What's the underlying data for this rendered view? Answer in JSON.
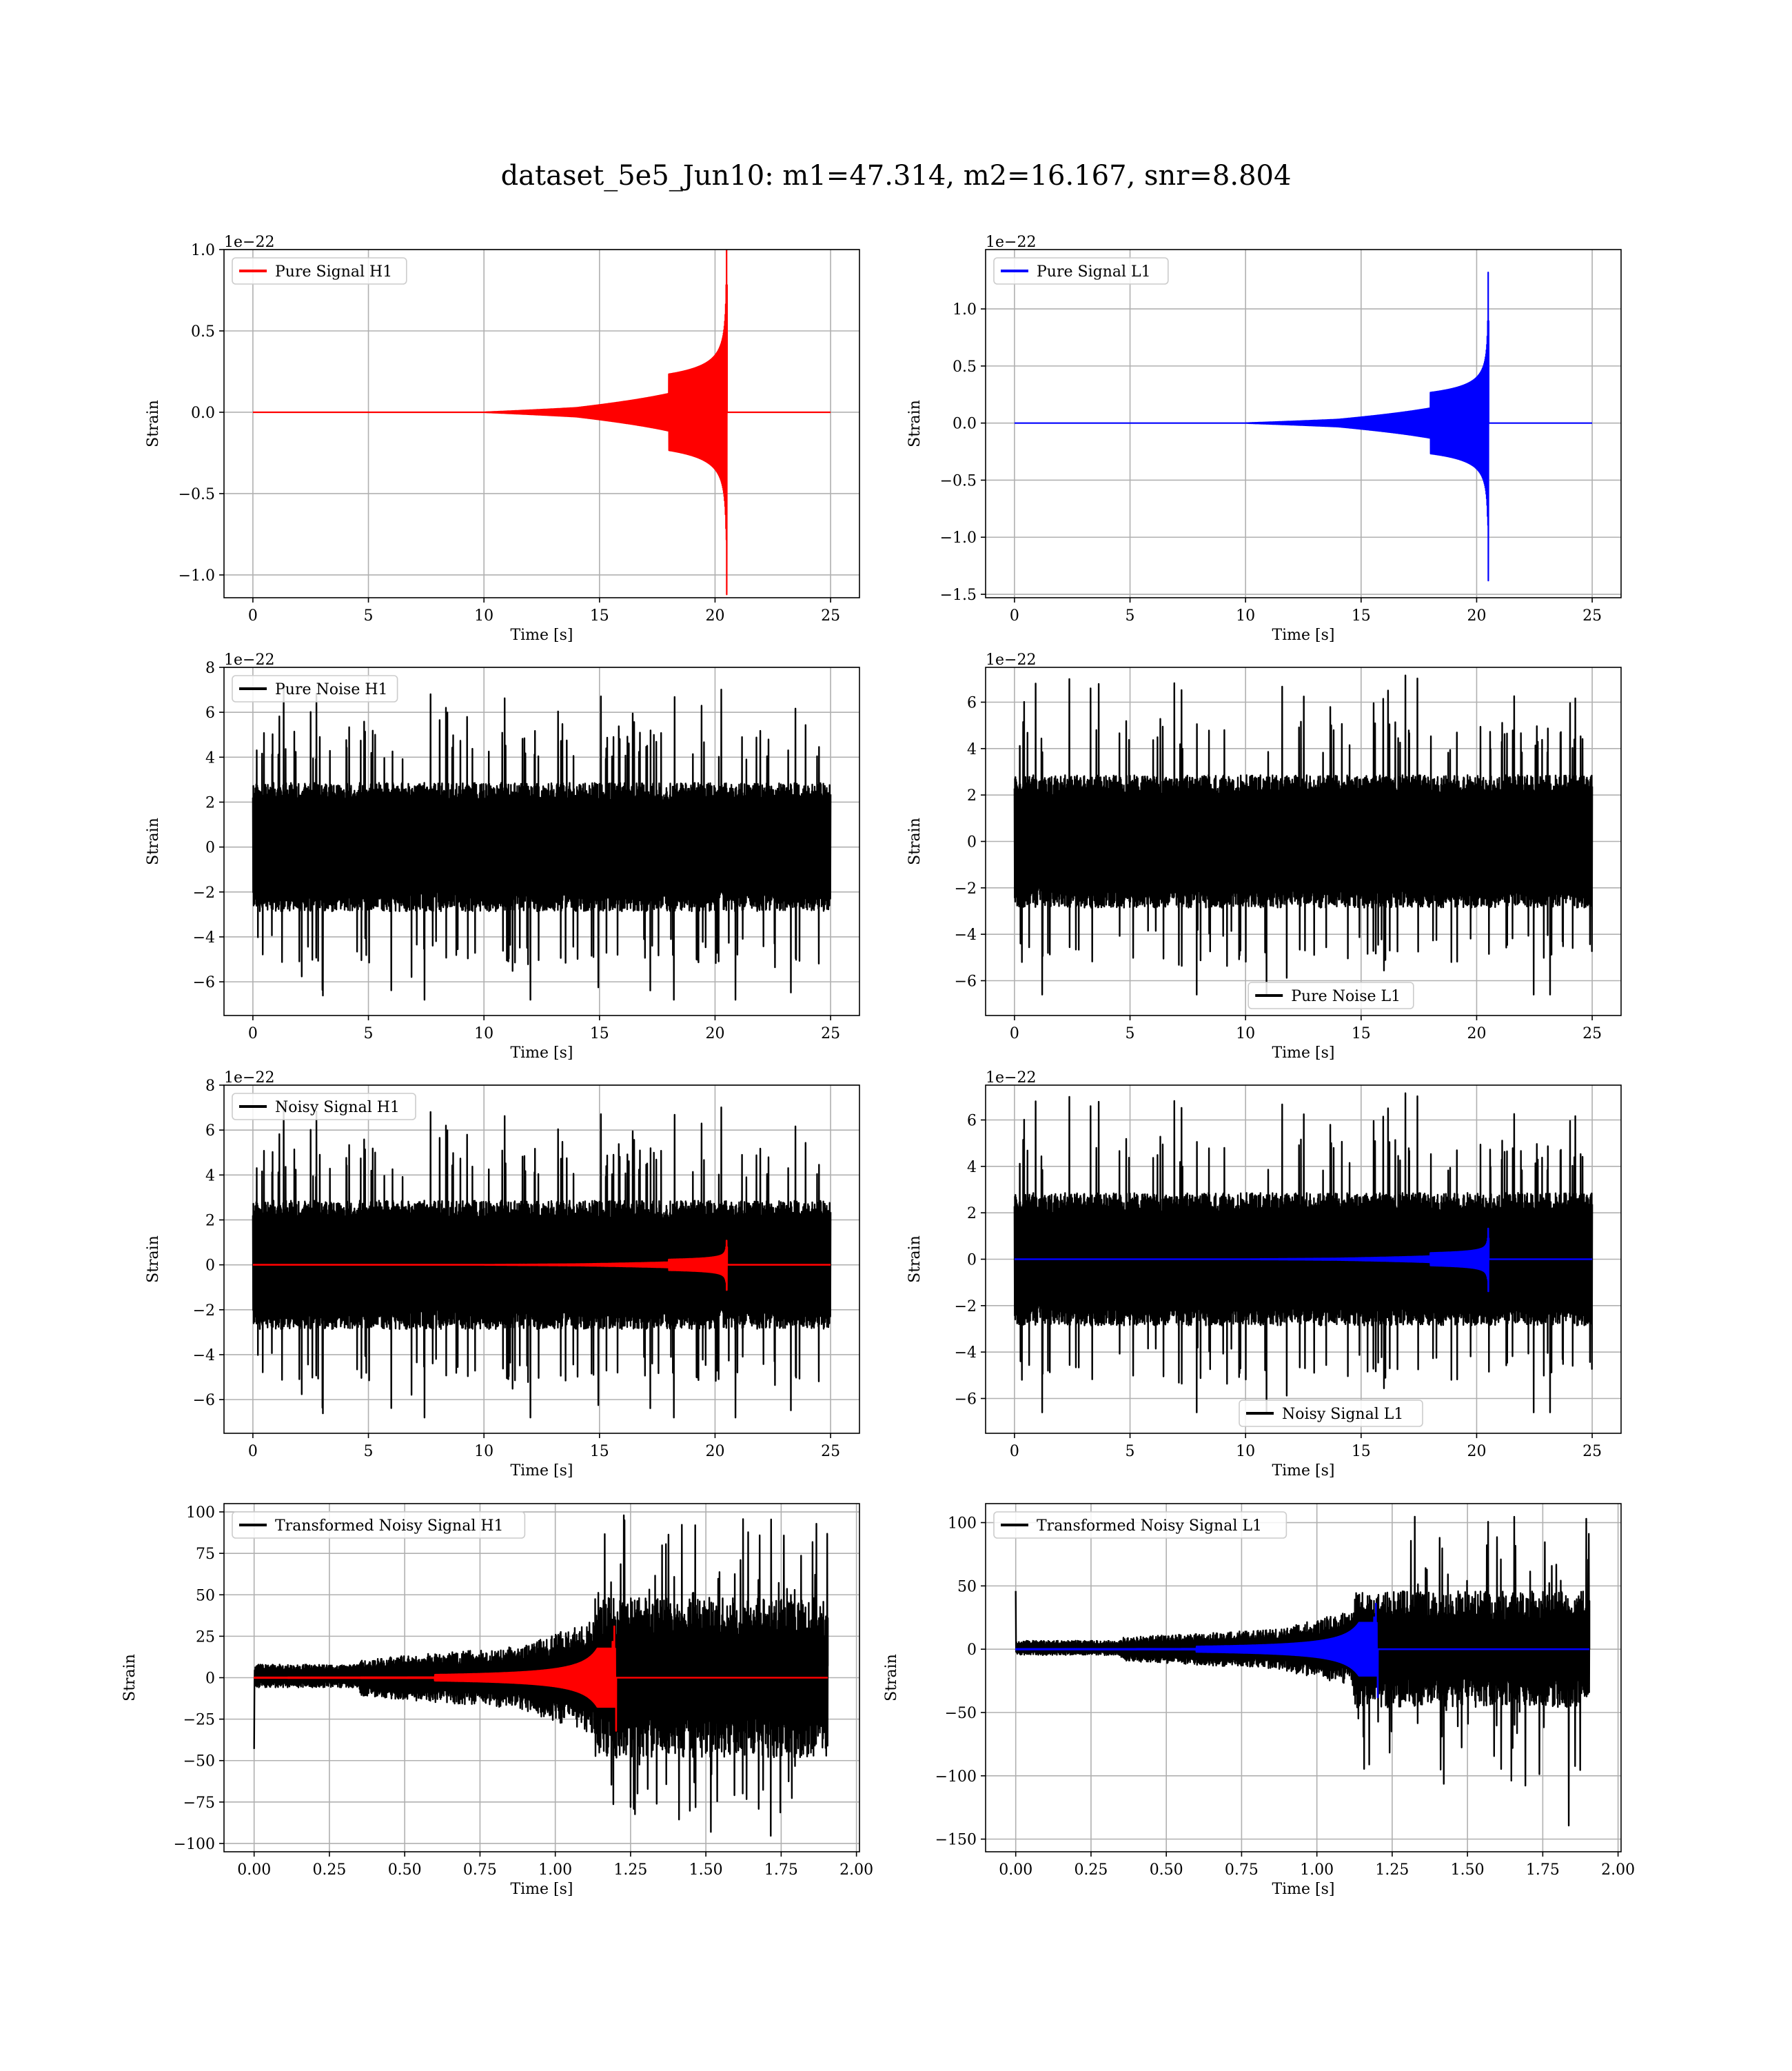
{
  "figure": {
    "suptitle": "dataset_5e5_Jun10: m1=47.314, m2=16.167, snr=8.804"
  },
  "colors": {
    "h1_signal": "#ff0000",
    "l1_signal": "#0000ff",
    "noise": "#000000",
    "grid": "#b0b0b0"
  },
  "chart_data": [
    {
      "id": "pure-signal-h1",
      "type": "line",
      "grid": true,
      "legend_placement": "upper left",
      "xlabel": "Time [s]",
      "ylabel": "Strain",
      "offset_text": "1e−22",
      "xlim": [
        -1.25,
        26.25
      ],
      "ylim": [
        -1.14,
        1.0
      ],
      "xticks": [
        0,
        5,
        10,
        15,
        20,
        25
      ],
      "xtick_labels": [
        "0",
        "5",
        "10",
        "15",
        "20",
        "25"
      ],
      "yticks": [
        -1.0,
        -0.5,
        0.0,
        0.5,
        1.0
      ],
      "ytick_labels": [
        "−1.0",
        "−0.5",
        "0.0",
        "0.5",
        "1.0"
      ],
      "series": [
        {
          "name": "Pure Signal H1",
          "kind": "chirp",
          "color": "#ff0000",
          "t_start": 0,
          "t_end": 25,
          "t_merger": 20.5,
          "peak_pos": 1.08,
          "peak_neg": -1.12,
          "env_at_20": 0.35,
          "width": 2.2
        }
      ]
    },
    {
      "id": "pure-signal-l1",
      "type": "line",
      "grid": true,
      "legend_placement": "upper left",
      "xlabel": "Time [s]",
      "ylabel": "Strain",
      "offset_text": "1e−22",
      "xlim": [
        -1.25,
        26.25
      ],
      "ylim": [
        -1.53,
        1.52
      ],
      "xticks": [
        0,
        5,
        10,
        15,
        20,
        25
      ],
      "xtick_labels": [
        "0",
        "5",
        "10",
        "15",
        "20",
        "25"
      ],
      "yticks": [
        -1.5,
        -1.0,
        -0.5,
        0.0,
        0.5,
        1.0
      ],
      "ytick_labels": [
        "−1.5",
        "−1.0",
        "−0.5",
        "0.0",
        "0.5",
        "1.0"
      ],
      "series": [
        {
          "name": "Pure Signal L1",
          "kind": "chirp",
          "color": "#0000ff",
          "t_start": 0,
          "t_end": 25,
          "t_merger": 20.5,
          "peak_pos": 1.32,
          "peak_neg": -1.38,
          "env_at_20": 0.4,
          "width": 2.2
        }
      ]
    },
    {
      "id": "pure-noise-h1",
      "type": "line",
      "grid": true,
      "legend_placement": "upper left",
      "xlabel": "Time [s]",
      "ylabel": "Strain",
      "offset_text": "1e−22",
      "xlim": [
        -1.25,
        26.25
      ],
      "ylim": [
        -7.5,
        8.0
      ],
      "xticks": [
        0,
        5,
        10,
        15,
        20,
        25
      ],
      "xtick_labels": [
        "0",
        "5",
        "10",
        "15",
        "20",
        "25"
      ],
      "yticks": [
        -6,
        -4,
        -2,
        0,
        2,
        4,
        6,
        8
      ],
      "ytick_labels": [
        "−6",
        "−4",
        "−2",
        "0",
        "2",
        "4",
        "6",
        "8"
      ],
      "series": [
        {
          "name": "Pure Noise H1",
          "kind": "noise",
          "color": "#000000",
          "t_start": 0,
          "t_end": 25,
          "core": 2.6,
          "spike_max": 7.4,
          "spike_min": -6.8,
          "seed": 11
        }
      ]
    },
    {
      "id": "pure-noise-l1",
      "type": "line",
      "grid": true,
      "legend_placement": "lower center",
      "xlabel": "Time [s]",
      "ylabel": "Strain",
      "offset_text": "1e−22",
      "xlim": [
        -1.25,
        26.25
      ],
      "ylim": [
        -7.5,
        7.5
      ],
      "xticks": [
        0,
        5,
        10,
        15,
        20,
        25
      ],
      "xtick_labels": [
        "0",
        "5",
        "10",
        "15",
        "20",
        "25"
      ],
      "yticks": [
        -6,
        -4,
        -2,
        0,
        2,
        4,
        6
      ],
      "ytick_labels": [
        "−6",
        "−4",
        "−2",
        "0",
        "2",
        "4",
        "6"
      ],
      "series": [
        {
          "name": "Pure Noise L1",
          "kind": "noise",
          "color": "#000000",
          "t_start": 0,
          "t_end": 25,
          "core": 2.6,
          "spike_max": 7.2,
          "spike_min": -6.6,
          "seed": 23
        }
      ]
    },
    {
      "id": "noisy-signal-h1",
      "type": "line",
      "grid": true,
      "legend_placement": "upper left",
      "xlabel": "Time [s]",
      "ylabel": "Strain",
      "offset_text": "1e−22",
      "xlim": [
        -1.25,
        26.25
      ],
      "ylim": [
        -7.5,
        8.0
      ],
      "xticks": [
        0,
        5,
        10,
        15,
        20,
        25
      ],
      "xtick_labels": [
        "0",
        "5",
        "10",
        "15",
        "20",
        "25"
      ],
      "yticks": [
        -6,
        -4,
        -2,
        0,
        2,
        4,
        6,
        8
      ],
      "ytick_labels": [
        "−6",
        "−4",
        "−2",
        "0",
        "2",
        "4",
        "6",
        "8"
      ],
      "series": [
        {
          "name": "Noisy Signal H1",
          "kind": "noise",
          "color": "#000000",
          "t_start": 0,
          "t_end": 25,
          "core": 2.6,
          "spike_max": 7.4,
          "spike_min": -6.8,
          "seed": 11
        },
        {
          "kind": "chirp",
          "color": "#ff0000",
          "t_start": 0,
          "t_end": 25,
          "t_merger": 20.5,
          "peak_pos": 1.08,
          "peak_neg": -1.12,
          "env_at_20": 0.35,
          "width": 2.6
        }
      ]
    },
    {
      "id": "noisy-signal-l1",
      "type": "line",
      "grid": true,
      "legend_placement": "lower center",
      "xlabel": "Time [s]",
      "ylabel": "Strain",
      "offset_text": "1e−22",
      "xlim": [
        -1.25,
        26.25
      ],
      "ylim": [
        -7.5,
        7.5
      ],
      "xticks": [
        0,
        5,
        10,
        15,
        20,
        25
      ],
      "xtick_labels": [
        "0",
        "5",
        "10",
        "15",
        "20",
        "25"
      ],
      "yticks": [
        -6,
        -4,
        -2,
        0,
        2,
        4,
        6
      ],
      "ytick_labels": [
        "−6",
        "−4",
        "−2",
        "0",
        "2",
        "4",
        "6"
      ],
      "series": [
        {
          "name": "Noisy Signal L1",
          "kind": "noise",
          "color": "#000000",
          "t_start": 0,
          "t_end": 25,
          "core": 2.6,
          "spike_max": 7.2,
          "spike_min": -6.6,
          "seed": 23
        },
        {
          "kind": "chirp",
          "color": "#0000ff",
          "t_start": 0,
          "t_end": 25,
          "t_merger": 20.5,
          "peak_pos": 1.32,
          "peak_neg": -1.38,
          "env_at_20": 0.4,
          "width": 2.6
        }
      ]
    },
    {
      "id": "transformed-noisy-signal-h1",
      "type": "line",
      "grid": true,
      "legend_placement": "upper left",
      "xlabel": "Time [s]",
      "ylabel": "Strain",
      "offset_text": "",
      "xlim": [
        -0.1,
        2.01
      ],
      "ylim": [
        -105,
        105
      ],
      "xticks": [
        0,
        0.25,
        0.5,
        0.75,
        1.0,
        1.25,
        1.5,
        1.75,
        2.0
      ],
      "xtick_labels": [
        "0.00",
        "0.25",
        "0.50",
        "0.75",
        "1.00",
        "1.25",
        "1.50",
        "1.75",
        "2.00"
      ],
      "yticks": [
        -100,
        -75,
        -50,
        -25,
        0,
        25,
        50,
        75,
        100
      ],
      "ytick_labels": [
        "−100",
        "−75",
        "−50",
        "−25",
        "0",
        "25",
        "50",
        "75",
        "100"
      ],
      "series": [
        {
          "name": "Transformed Noisy Signal H1",
          "kind": "tnoise",
          "color": "#000000",
          "t_start": 0,
          "t_end": 1.905,
          "t_ramp": 1.13,
          "pre_core": 6,
          "post_core": 42,
          "spike_max": 98,
          "spike_min": -97,
          "dip_start": -43,
          "tail_end": 7,
          "seed": 37
        },
        {
          "kind": "tchirp",
          "color": "#ff0000",
          "t_start": 0,
          "t_end": 1.905,
          "t_merger": 1.2,
          "peak_pos": 31,
          "peak_neg": -32,
          "width": 2.6
        }
      ]
    },
    {
      "id": "transformed-noisy-signal-l1",
      "type": "line",
      "grid": true,
      "legend_placement": "upper left",
      "xlabel": "Time [s]",
      "ylabel": "Strain",
      "offset_text": "",
      "xlim": [
        -0.1,
        2.01
      ],
      "ylim": [
        -160,
        115
      ],
      "xticks": [
        0,
        0.25,
        0.5,
        0.75,
        1.0,
        1.25,
        1.5,
        1.75,
        2.0
      ],
      "xtick_labels": [
        "0.00",
        "0.25",
        "0.50",
        "0.75",
        "1.00",
        "1.25",
        "1.50",
        "1.75",
        "2.00"
      ],
      "yticks": [
        -150,
        -100,
        -50,
        0,
        50,
        100
      ],
      "ytick_labels": [
        "−150",
        "−100",
        "−50",
        "0",
        "50",
        "100"
      ],
      "series": [
        {
          "name": "Transformed Noisy Signal L1",
          "kind": "tnoise",
          "color": "#000000",
          "t_start": 0,
          "t_end": 1.905,
          "t_ramp": 1.12,
          "pre_core": 5,
          "post_core": 40,
          "spike_max": 105,
          "spike_min": -150,
          "dip_start": 46,
          "tail_end": 0,
          "seed": 53
        },
        {
          "kind": "tchirp",
          "color": "#0000ff",
          "t_start": 0,
          "t_end": 1.905,
          "t_merger": 1.2,
          "peak_pos": 36,
          "peak_neg": -38,
          "width": 2.6
        }
      ]
    }
  ]
}
